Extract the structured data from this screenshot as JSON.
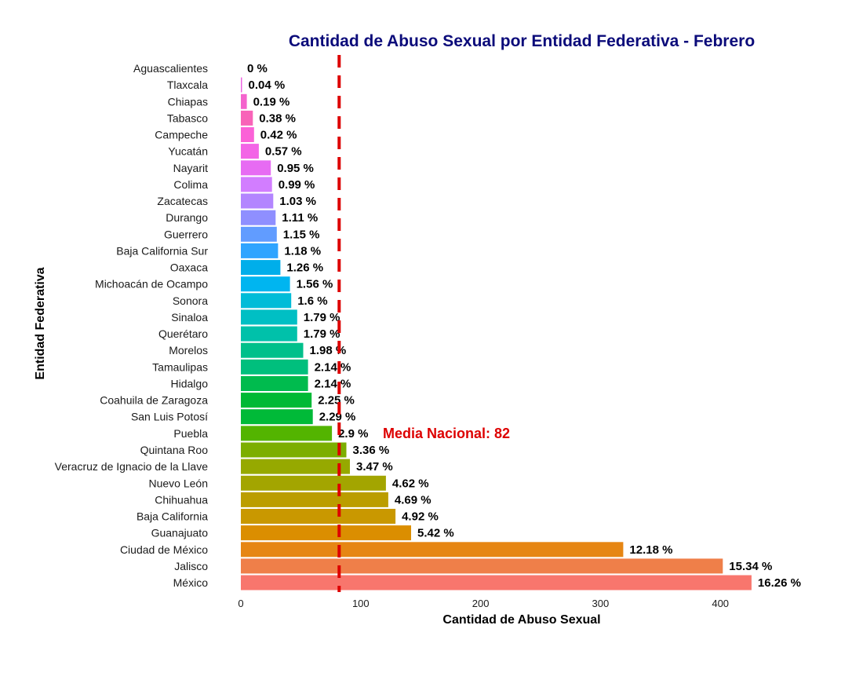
{
  "colors": {
    "title": "#0b0b7a",
    "mean_line": "#dd0000",
    "mean_text": "#dd0000"
  },
  "chart_data": {
    "type": "bar",
    "orientation": "horizontal",
    "title": "Cantidad de Abuso Sexual por Entidad Federativa - Febrero",
    "xlabel": "Cantidad de Abuso Sexual",
    "ylabel": "Entidad Federativa",
    "xlim": [
      0,
      450
    ],
    "xticks": [
      0,
      100,
      200,
      300,
      400
    ],
    "grid": false,
    "mean": {
      "label": "Media Nacional:  82",
      "value": 82
    },
    "categories": [
      "Aguascalientes",
      "Tlaxcala",
      "Chiapas",
      "Tabasco",
      "Campeche",
      "Yucatán",
      "Nayarit",
      "Colima",
      "Zacatecas",
      "Durango",
      "Guerrero",
      "Baja California Sur",
      "Oaxaca",
      "Michoacán de Ocampo",
      "Sonora",
      "Sinaloa",
      "Querétaro",
      "Morelos",
      "Tamaulipas",
      "Hidalgo",
      "Coahuila de Zaragoza",
      "San Luis Potosí",
      "Puebla",
      "Quintana Roo",
      "Veracruz de Ignacio de la Llave",
      "Nuevo León",
      "Chihuahua",
      "Baja California",
      "Guanajuato",
      "Ciudad de México",
      "Jalisco",
      "México"
    ],
    "values": [
      0,
      1,
      5,
      10,
      11,
      15,
      25,
      26,
      27,
      29,
      30,
      31,
      33,
      41,
      42,
      47,
      47,
      52,
      56,
      56,
      59,
      60,
      76,
      88,
      91,
      121,
      123,
      129,
      142,
      319,
      402,
      426
    ],
    "labels": [
      "0 %",
      "0.04 %",
      "0.19 %",
      "0.38 %",
      "0.42 %",
      "0.57 %",
      "0.95 %",
      "0.99 %",
      "1.03 %",
      "1.11 %",
      "1.15 %",
      "1.18 %",
      "1.26 %",
      "1.56 %",
      "1.6 %",
      "1.79 %",
      "1.79 %",
      "1.98 %",
      "2.14 %",
      "2.14 %",
      "2.25 %",
      "2.29 %",
      "2.9 %",
      "3.36 %",
      "3.47 %",
      "4.62 %",
      "4.69 %",
      "4.92 %",
      "5.42 %",
      "12.18 %",
      "15.34 %",
      "16.26 %"
    ],
    "bar_colors": [
      "#e76bf3",
      "#ee65e1",
      "#f463cd",
      "#f863b8",
      "#fb61d7",
      "#f365e6",
      "#e76bf3",
      "#d27dff",
      "#b385ff",
      "#8f8fff",
      "#619cff",
      "#2fa4ff",
      "#00aeea",
      "#00b5f0",
      "#00bcd8",
      "#00bfc4",
      "#00c1aa",
      "#00c08b",
      "#00bf7d",
      "#00bb4e",
      "#00b935",
      "#00ba38",
      "#53b400",
      "#7cae00",
      "#96a900",
      "#a3a500",
      "#bb9d00",
      "#c99800",
      "#db8e00",
      "#e68613",
      "#ef7f49",
      "#f8766d"
    ]
  }
}
